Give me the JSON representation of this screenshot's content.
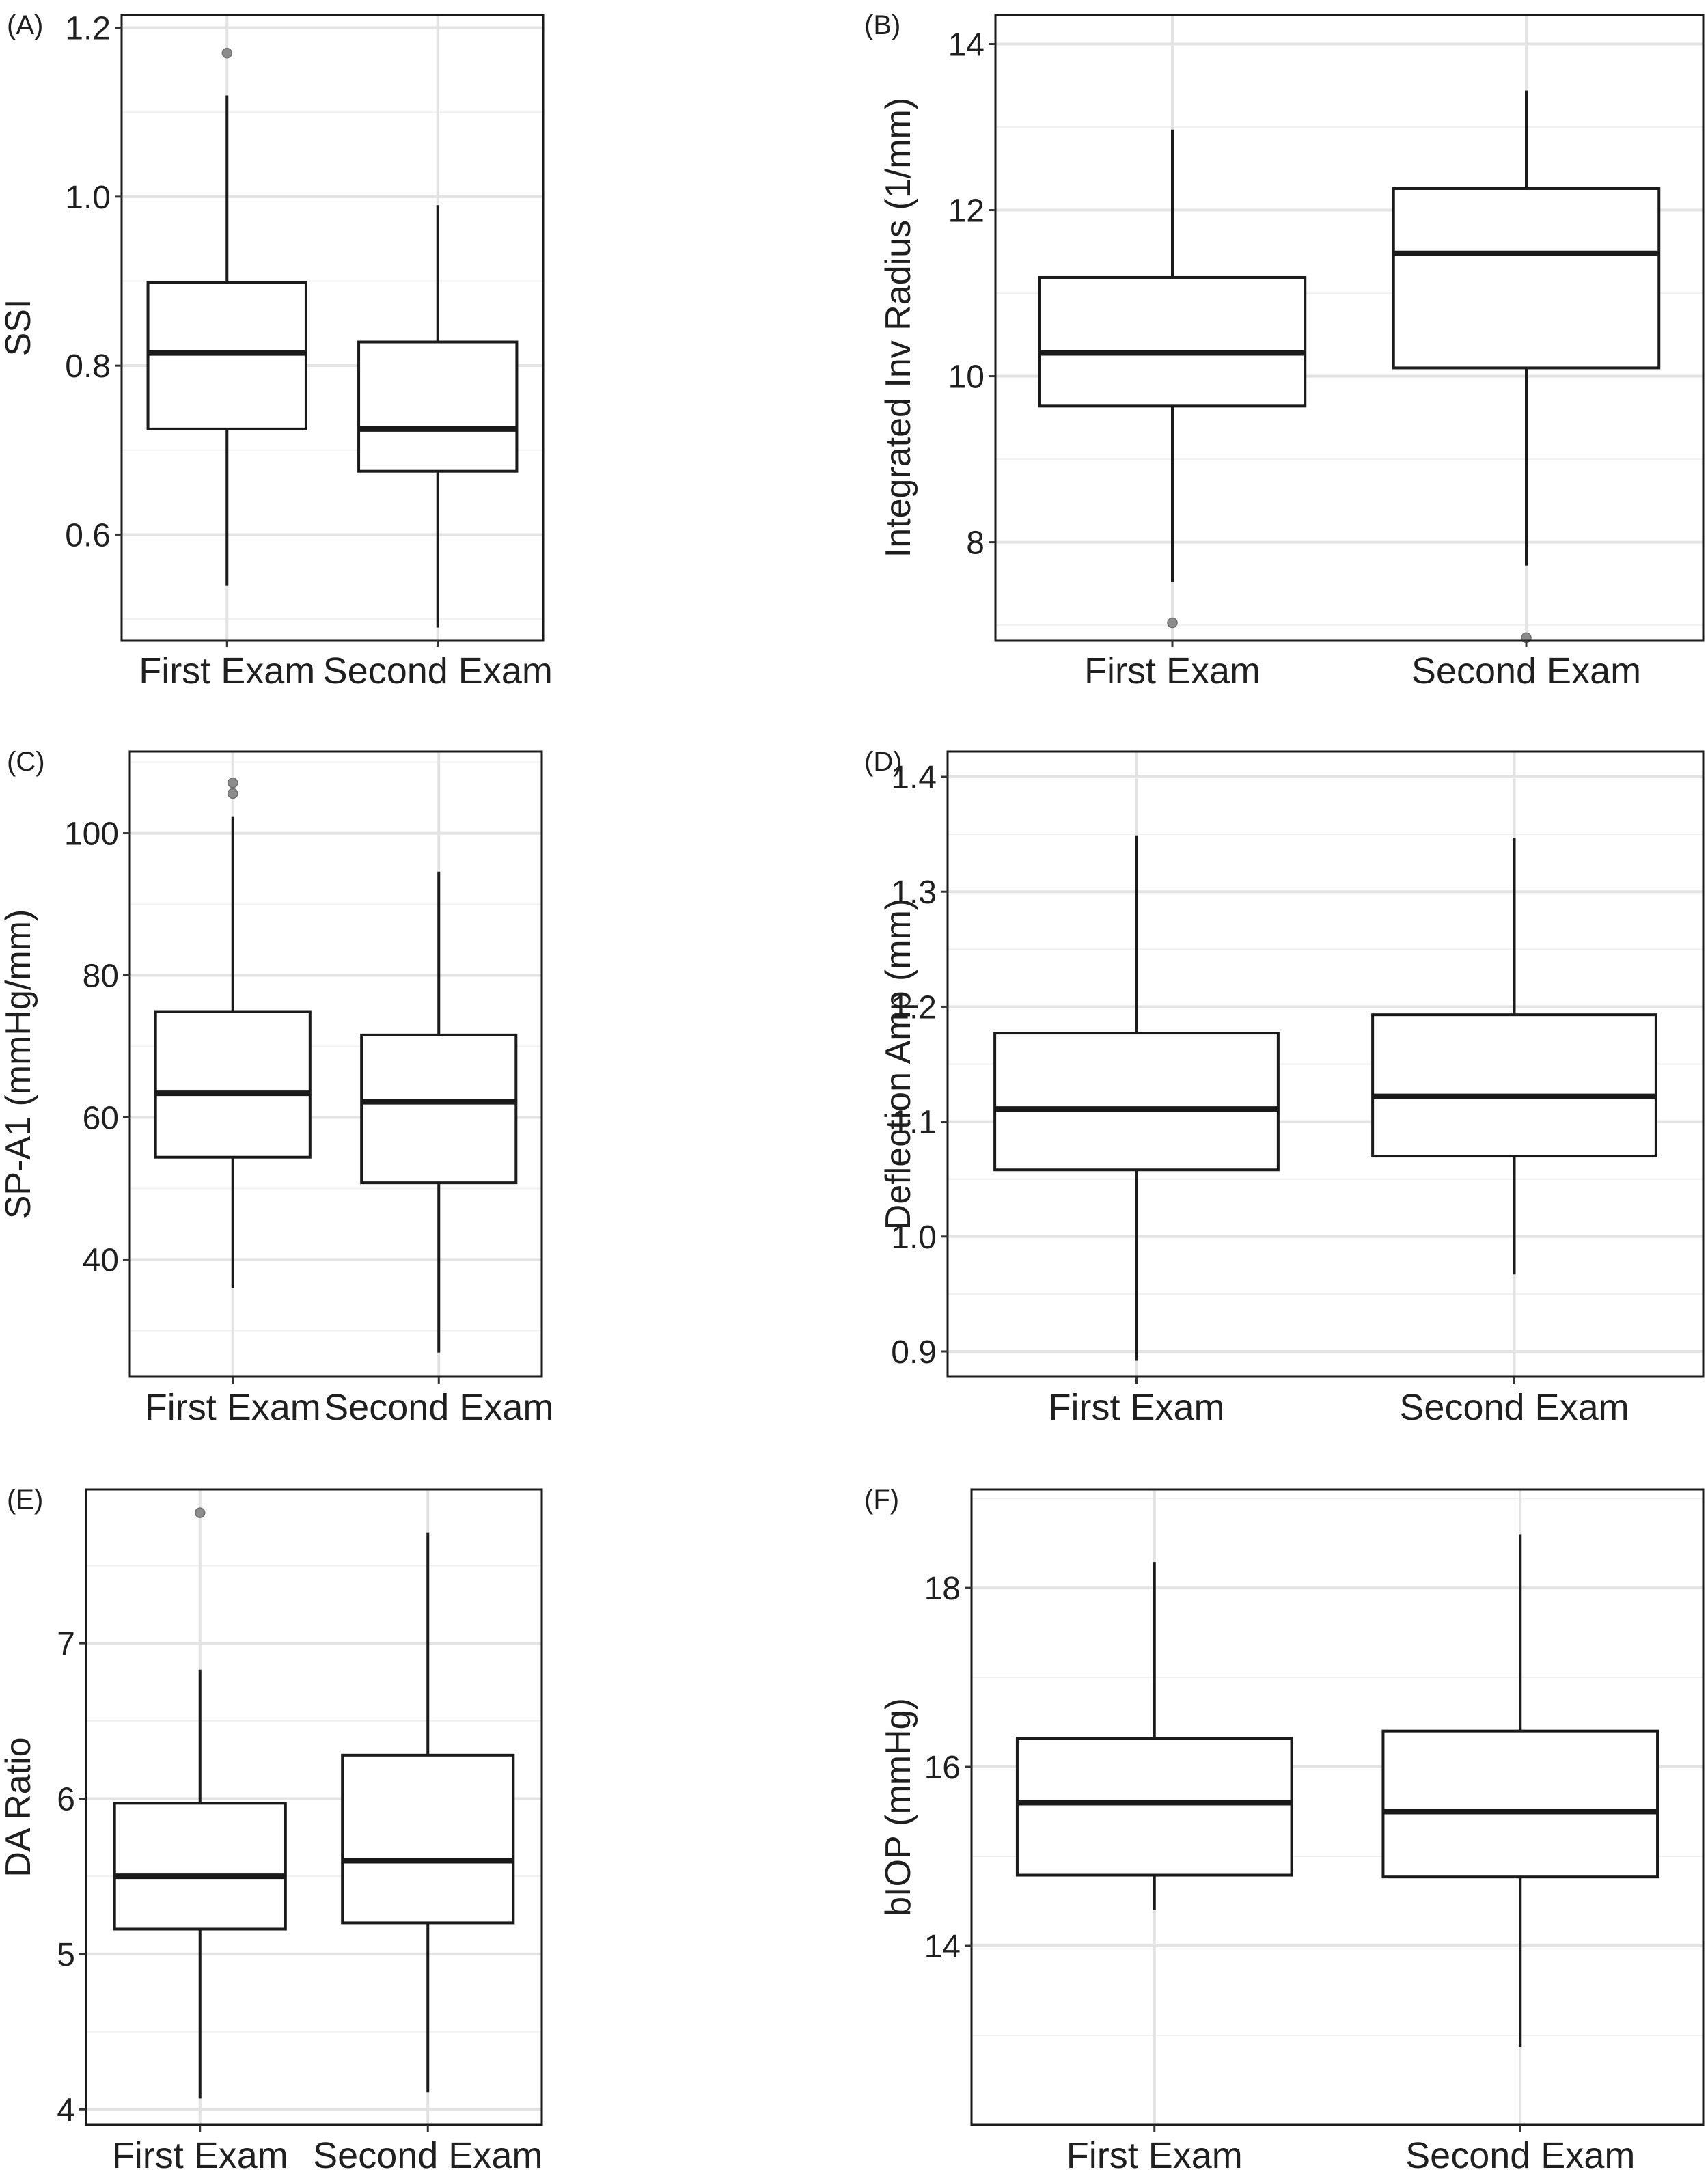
{
  "chart_data": [
    {
      "type": "boxplot",
      "panel": "(A)",
      "ylabel": "SSI",
      "xlabel": "",
      "categories": [
        "First Exam",
        "Second Exam"
      ],
      "ylim": [
        0.475,
        1.215
      ],
      "yticks": [
        0.6,
        0.8,
        1.0,
        1.2
      ],
      "ytick_labels": [
        "0.6",
        "0.8",
        "1.0",
        "1.2"
      ],
      "grid": true,
      "boxes": [
        {
          "whisker_low": 0.54,
          "q1": 0.725,
          "median": 0.815,
          "q3": 0.898,
          "whisker_high": 1.12,
          "outliers": [
            1.17
          ]
        },
        {
          "whisker_low": 0.49,
          "q1": 0.675,
          "median": 0.725,
          "q3": 0.828,
          "whisker_high": 0.99,
          "outliers": []
        }
      ]
    },
    {
      "type": "boxplot",
      "panel": "(B)",
      "ylabel": "Integrated Inv Radius (1/mm)",
      "xlabel": "",
      "categories": [
        "First Exam",
        "Second Exam"
      ],
      "ylim": [
        6.82,
        14.35
      ],
      "yticks": [
        8,
        10,
        12,
        14
      ],
      "ytick_labels": [
        "8",
        "10",
        "12",
        "14"
      ],
      "grid": true,
      "boxes": [
        {
          "whisker_low": 7.52,
          "q1": 9.64,
          "median": 10.28,
          "q3": 11.19,
          "whisker_high": 12.97,
          "outliers": [
            7.03
          ]
        },
        {
          "whisker_low": 7.72,
          "q1": 10.1,
          "median": 11.48,
          "q3": 12.26,
          "whisker_high": 13.44,
          "outliers": [
            6.85
          ]
        }
      ]
    },
    {
      "type": "boxplot",
      "panel": "(C)",
      "ylabel": "SP-A1 (mmHg/mm)",
      "xlabel": "",
      "categories": [
        "First Exam",
        "Second Exam"
      ],
      "ylim": [
        23.5,
        111.5
      ],
      "yticks": [
        40,
        60,
        80,
        100
      ],
      "ytick_labels": [
        "40",
        "60",
        "80",
        "100"
      ],
      "grid": true,
      "boxes": [
        {
          "whisker_low": 36.0,
          "q1": 54.4,
          "median": 63.4,
          "q3": 74.9,
          "whisker_high": 102.3,
          "outliers": [
            105.6,
            107.1
          ]
        },
        {
          "whisker_low": 26.9,
          "q1": 50.8,
          "median": 62.2,
          "q3": 71.6,
          "whisker_high": 94.6,
          "outliers": []
        }
      ]
    },
    {
      "type": "boxplot",
      "panel": "(D)",
      "ylabel": "Deflection Amp (mm)",
      "xlabel": "",
      "categories": [
        "First Exam",
        "Second Exam"
      ],
      "ylim": [
        0.878,
        1.422
      ],
      "yticks": [
        0.9,
        1.0,
        1.1,
        1.2,
        1.3,
        1.4
      ],
      "ytick_labels": [
        "0.9",
        "1.0",
        "1.1",
        "1.2",
        "1.3",
        "1.4"
      ],
      "grid": true,
      "boxes": [
        {
          "whisker_low": 0.892,
          "q1": 1.058,
          "median": 1.111,
          "q3": 1.177,
          "whisker_high": 1.349,
          "outliers": []
        },
        {
          "whisker_low": 0.967,
          "q1": 1.07,
          "median": 1.122,
          "q3": 1.193,
          "whisker_high": 1.347,
          "outliers": []
        }
      ]
    },
    {
      "type": "boxplot",
      "panel": "(E)",
      "ylabel": "DA Ratio",
      "xlabel": "",
      "categories": [
        "First Exam",
        "Second Exam"
      ],
      "ylim": [
        3.9,
        7.99
      ],
      "yticks": [
        4,
        5,
        6,
        7
      ],
      "ytick_labels": [
        "4",
        "5",
        "6",
        "7"
      ],
      "grid": true,
      "boxes": [
        {
          "whisker_low": 4.07,
          "q1": 5.16,
          "median": 5.5,
          "q3": 5.97,
          "whisker_high": 6.83,
          "outliers": [
            7.84
          ]
        },
        {
          "whisker_low": 4.11,
          "q1": 5.2,
          "median": 5.6,
          "q3": 6.28,
          "whisker_high": 7.71,
          "outliers": []
        }
      ]
    },
    {
      "type": "boxplot",
      "panel": "(F)",
      "ylabel": "bIOP (mmHg)",
      "xlabel": "",
      "categories": [
        "First Exam",
        "Second Exam"
      ],
      "ylim": [
        12.0,
        19.1
      ],
      "yticks": [
        14,
        16,
        18
      ],
      "ytick_labels": [
        "14",
        "16",
        "18"
      ],
      "grid": true,
      "boxes": [
        {
          "whisker_low": 14.4,
          "q1": 14.79,
          "median": 15.6,
          "q3": 16.32,
          "whisker_high": 18.29,
          "outliers": []
        },
        {
          "whisker_low": 12.87,
          "q1": 14.77,
          "median": 15.5,
          "q3": 16.4,
          "whisker_high": 18.6,
          "outliers": []
        }
      ]
    }
  ]
}
